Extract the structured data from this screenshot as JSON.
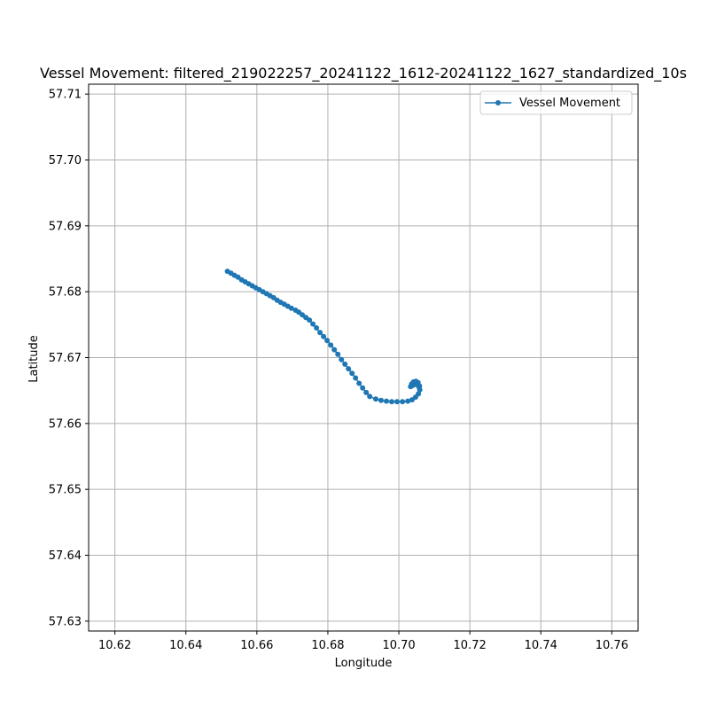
{
  "chart_data": {
    "type": "line",
    "title": "Vessel Movement: filtered_219022257_20241122_1612-20241122_1627_standardized_10s",
    "xlabel": "Longitude",
    "ylabel": "Latitude",
    "xlim": [
      10.6126,
      10.7674
    ],
    "ylim": [
      57.6285,
      57.7115
    ],
    "xticks": [
      "10.62",
      "10.64",
      "10.66",
      "10.68",
      "10.70",
      "10.72",
      "10.74",
      "10.76"
    ],
    "yticks": [
      "57.63",
      "57.64",
      "57.65",
      "57.66",
      "57.67",
      "57.68",
      "57.69",
      "57.70",
      "57.71"
    ],
    "grid": true,
    "legend_position": "top-right",
    "series": [
      {
        "name": "Vessel Movement",
        "color": "#1f77b4",
        "marker": "circle",
        "points": [
          [
            10.6517,
            57.6831
          ],
          [
            10.6527,
            57.6828
          ],
          [
            10.6537,
            57.6825
          ],
          [
            10.6547,
            57.6822
          ],
          [
            10.6557,
            57.6818
          ],
          [
            10.6567,
            57.6815
          ],
          [
            10.6577,
            57.6812
          ],
          [
            10.6587,
            57.6809
          ],
          [
            10.6597,
            57.6806
          ],
          [
            10.6607,
            57.6803
          ],
          [
            10.6617,
            57.68
          ],
          [
            10.6627,
            57.6797
          ],
          [
            10.6637,
            57.6794
          ],
          [
            10.6647,
            57.6791
          ],
          [
            10.6657,
            57.6787
          ],
          [
            10.6667,
            57.6784
          ],
          [
            10.6677,
            57.6781
          ],
          [
            10.6687,
            57.6778
          ],
          [
            10.6697,
            57.6775
          ],
          [
            10.6709,
            57.6772
          ],
          [
            10.6718,
            57.6769
          ],
          [
            10.6728,
            57.6765
          ],
          [
            10.6738,
            57.6761
          ],
          [
            10.6748,
            57.6757
          ],
          [
            10.6758,
            57.6751
          ],
          [
            10.6768,
            57.6745
          ],
          [
            10.6778,
            57.6738
          ],
          [
            10.6788,
            57.6732
          ],
          [
            10.6798,
            57.6726
          ],
          [
            10.6808,
            57.6719
          ],
          [
            10.6818,
            57.6712
          ],
          [
            10.6828,
            57.6705
          ],
          [
            10.6838,
            57.6697
          ],
          [
            10.6848,
            57.669
          ],
          [
            10.6858,
            57.6683
          ],
          [
            10.6868,
            57.6676
          ],
          [
            10.6878,
            57.6669
          ],
          [
            10.6888,
            57.6661
          ],
          [
            10.6898,
            57.6654
          ],
          [
            10.6908,
            57.6647
          ],
          [
            10.6918,
            57.6641
          ],
          [
            10.6935,
            57.6637
          ],
          [
            10.695,
            57.6635
          ],
          [
            10.6965,
            57.6634
          ],
          [
            10.698,
            57.6633
          ],
          [
            10.6995,
            57.6633
          ],
          [
            10.701,
            57.6633
          ],
          [
            10.7025,
            57.6634
          ],
          [
            10.7037,
            57.6636
          ],
          [
            10.7047,
            57.664
          ],
          [
            10.7055,
            57.6645
          ],
          [
            10.7059,
            57.6651
          ],
          [
            10.7058,
            57.6657
          ],
          [
            10.7054,
            57.6662
          ],
          [
            10.7048,
            57.6664
          ],
          [
            10.7041,
            57.6663
          ],
          [
            10.7036,
            57.666
          ],
          [
            10.7033,
            57.6656
          ],
          [
            10.704,
            57.6658
          ],
          [
            10.7047,
            57.666
          ],
          [
            10.7052,
            57.6659
          ],
          [
            10.7055,
            57.6657
          ],
          [
            10.7057,
            57.6655
          ]
        ]
      }
    ]
  }
}
